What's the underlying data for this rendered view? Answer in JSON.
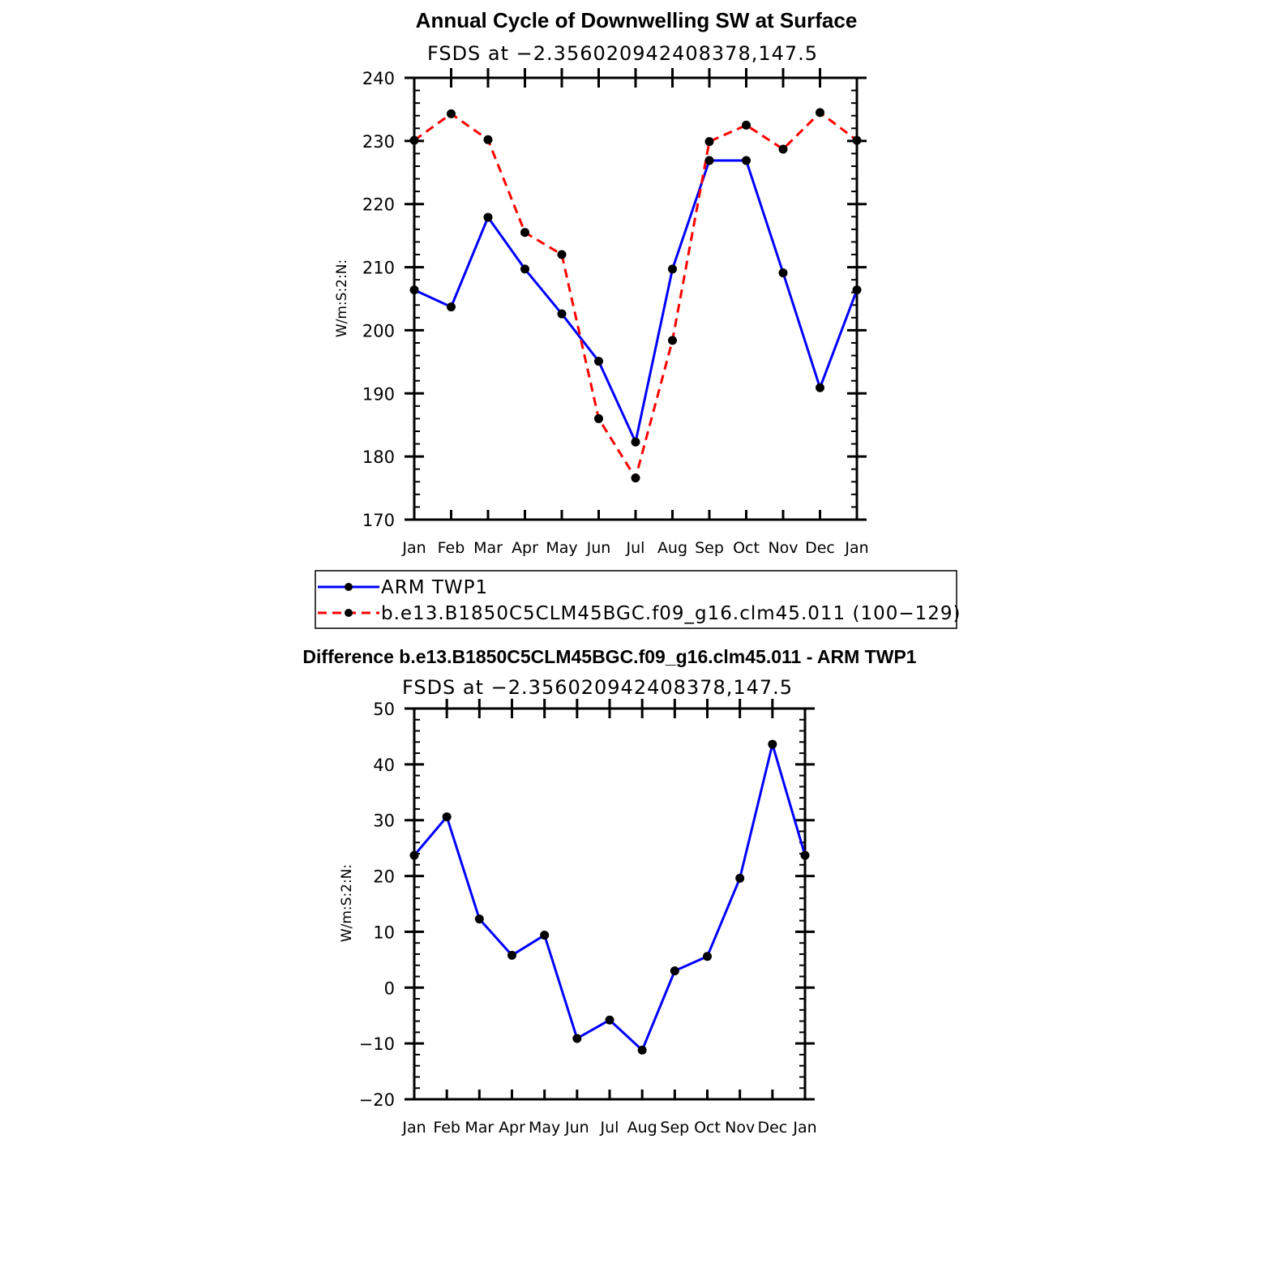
{
  "chart_data": [
    {
      "type": "line",
      "title": "Annual Cycle of Downwelling SW at Surface",
      "subtitle": "FSDS at −2.356020942408378,147.5",
      "ylabel": "W/m:S:2:N:",
      "xlabel": "",
      "categories": [
        "Jan",
        "Feb",
        "Mar",
        "Apr",
        "May",
        "Jun",
        "Jul",
        "Aug",
        "Sep",
        "Oct",
        "Nov",
        "Dec",
        "Jan"
      ],
      "ylim": [
        170,
        240
      ],
      "yticks": [
        170,
        180,
        190,
        200,
        210,
        220,
        230,
        240
      ],
      "ytick_labels": [
        "170",
        "180",
        "190",
        "200",
        "210",
        "220",
        "230",
        "240"
      ],
      "grid": false,
      "legend_placement": "below",
      "series": [
        {
          "name": "ARM TWP1",
          "color": "#0000ff",
          "dash": "solid",
          "values": [
            206.4,
            203.7,
            217.9,
            209.7,
            202.6,
            195.1,
            182.3,
            209.7,
            226.9,
            226.9,
            209.1,
            190.9,
            206.4
          ]
        },
        {
          "name": "b.e13.B1850C5CLM45BGC.f09_g16.clm45.011 (100−129)",
          "color": "#ff0000",
          "dash": "dashed",
          "values": [
            230.1,
            234.3,
            230.2,
            215.5,
            212.0,
            186.0,
            176.6,
            198.4,
            229.9,
            232.5,
            228.7,
            234.5,
            230.1
          ]
        }
      ]
    },
    {
      "type": "line",
      "title": "Difference b.e13.B1850C5CLM45BGC.f09_g16.clm45.011 - ARM TWP1",
      "subtitle": "FSDS at −2.356020942408378,147.5",
      "ylabel": "W/m:S:2:N:",
      "xlabel": "",
      "categories": [
        "Jan",
        "Feb",
        "Mar",
        "Apr",
        "May",
        "Jun",
        "Jul",
        "Aug",
        "Sep",
        "Oct",
        "Nov",
        "Dec",
        "Jan"
      ],
      "ylim": [
        -20,
        50
      ],
      "yticks": [
        -20,
        -10,
        0,
        10,
        20,
        30,
        40,
        50
      ],
      "ytick_labels": [
        "−20",
        "−10",
        "0",
        "10",
        "20",
        "30",
        "40",
        "50"
      ],
      "grid": false,
      "series": [
        {
          "color": "#0000ff",
          "dash": "solid",
          "values": [
            23.7,
            30.6,
            12.3,
            5.8,
            9.4,
            -9.1,
            -5.8,
            -11.2,
            3.0,
            5.6,
            19.6,
            43.6,
            23.7
          ]
        }
      ]
    }
  ]
}
